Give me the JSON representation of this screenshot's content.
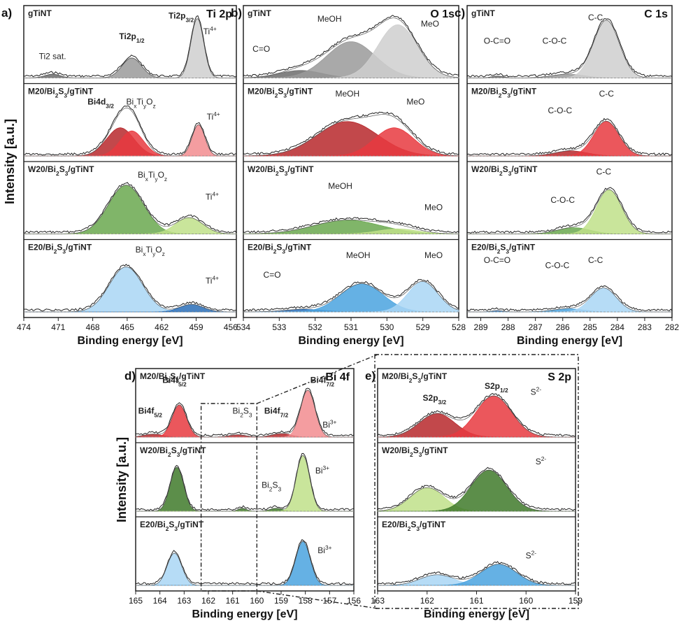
{
  "figure": {
    "panel_letters": [
      "a)",
      "b)",
      "c)",
      "d)",
      "e)"
    ],
    "ylabel": "Intensity [a.u.]",
    "xlabel": "Binding energy [eV]"
  },
  "colors": {
    "gray": "#9a9a9a",
    "gray_light": "#cfcfcf",
    "gray_dark": "#6c6c6c",
    "red": "#e8393f",
    "red_dark": "#b7282c",
    "red_light": "#f28c8f",
    "green": "#6aa84f",
    "green_dark": "#3f7a2a",
    "green_light": "#bfe08a",
    "blue": "#4aa3df",
    "blue_dark": "#2a6fb8",
    "blue_light": "#a9d6f5",
    "line": "#333333"
  },
  "chart_data": [
    {
      "id": "a",
      "type": "line",
      "title": "Ti 2p",
      "xlabel": "Binding energy [eV]",
      "ylabel": "Intensity [a.u.]",
      "xlim": [
        474,
        455.5
      ],
      "xticks": [
        474,
        471,
        468,
        465,
        462,
        459,
        456
      ],
      "samples": [
        {
          "name": "gTiNT",
          "color": "gray",
          "peaks": [
            {
              "center": 471.5,
              "fwhm": 1.6,
              "height": 0.06,
              "shade": "gray_dark"
            },
            {
              "center": 464.6,
              "fwhm": 2.0,
              "height": 0.32,
              "shade": "gray"
            },
            {
              "center": 458.9,
              "fwhm": 1.3,
              "height": 0.95,
              "shade": "gray_light"
            }
          ],
          "labels": [
            {
              "text": "Ti2 sat.",
              "x": 471.5,
              "y": 0.3
            },
            {
              "text": "Ti2p1/2",
              "x": 464.6,
              "y": 0.62,
              "bold": true
            },
            {
              "text": "Ti2p3/2",
              "x": 460.3,
              "y": 0.95,
              "bold": true
            },
            {
              "text": "Ti4+",
              "x": 457.8,
              "y": 0.7
            }
          ]
        },
        {
          "name": "M20/Bi2S3/gTiNT",
          "color": "red",
          "peaks": [
            {
              "center": 465.6,
              "fwhm": 2.8,
              "height": 0.45,
              "shade": "red_dark"
            },
            {
              "center": 464.6,
              "fwhm": 2.4,
              "height": 0.4,
              "shade": "red"
            },
            {
              "center": 458.8,
              "fwhm": 1.3,
              "height": 0.5,
              "shade": "red_light"
            }
          ],
          "labels": [
            {
              "text": "Bi4d3/2",
              "x": 467.3,
              "y": 0.82,
              "bold": true
            },
            {
              "text": "BixTiyOz",
              "x": 463.8,
              "y": 0.82
            },
            {
              "text": "Ti4+",
              "x": 457.5,
              "y": 0.58
            }
          ]
        },
        {
          "name": "W20/Bi2S3/gTiNT",
          "color": "green",
          "peaks": [
            {
              "center": 465.1,
              "fwhm": 3.6,
              "height": 0.78,
              "shade": "green"
            },
            {
              "center": 459.6,
              "fwhm": 2.8,
              "height": 0.26,
              "shade": "green_light"
            }
          ],
          "labels": [
            {
              "text": "BixTiyOz",
              "x": 462.8,
              "y": 0.9
            },
            {
              "text": "Ti4+",
              "x": 457.6,
              "y": 0.55
            }
          ]
        },
        {
          "name": "E20/Bi2S3/gTiNT",
          "color": "blue",
          "peaks": [
            {
              "center": 465.1,
              "fwhm": 3.4,
              "height": 0.72,
              "shade": "blue_light"
            },
            {
              "center": 459.4,
              "fwhm": 2.4,
              "height": 0.12,
              "shade": "blue_dark"
            }
          ],
          "labels": [
            {
              "text": "BixTiyOz",
              "x": 463.0,
              "y": 0.95
            },
            {
              "text": "Ti4+",
              "x": 457.6,
              "y": 0.45
            }
          ]
        }
      ]
    },
    {
      "id": "b",
      "type": "line",
      "title": "O 1s",
      "xlabel": "Binding energy [eV]",
      "xlim": [
        534,
        528
      ],
      "xticks": [
        534,
        533,
        532,
        531,
        530,
        529,
        528
      ],
      "samples": [
        {
          "name": "gTiNT",
          "color": "gray",
          "peaks": [
            {
              "center": 532.4,
              "fwhm": 1.4,
              "height": 0.12,
              "shade": "gray_dark"
            },
            {
              "center": 531.0,
              "fwhm": 1.6,
              "height": 0.58,
              "shade": "gray"
            },
            {
              "center": 529.7,
              "fwhm": 1.3,
              "height": 0.85,
              "shade": "gray_light"
            }
          ],
          "labels": [
            {
              "text": "C=O",
              "x": 533.5,
              "y": 0.42
            },
            {
              "text": "MeOH",
              "x": 531.6,
              "y": 0.9
            },
            {
              "text": "MeO",
              "x": 528.8,
              "y": 0.82
            }
          ]
        },
        {
          "name": "M20/Bi2S3/gTiNT",
          "color": "red",
          "peaks": [
            {
              "center": 531.1,
              "fwhm": 2.0,
              "height": 0.55,
              "shade": "red_dark"
            },
            {
              "center": 529.8,
              "fwhm": 1.3,
              "height": 0.45,
              "shade": "red"
            }
          ],
          "labels": [
            {
              "text": "MeOH",
              "x": 531.1,
              "y": 0.95
            },
            {
              "text": "MeO",
              "x": 529.2,
              "y": 0.82
            }
          ]
        },
        {
          "name": "W20/Bi2S3/gTiNT",
          "color": "green",
          "peaks": [
            {
              "center": 531.1,
              "fwhm": 2.2,
              "height": 0.22,
              "shade": "green"
            },
            {
              "center": 529.7,
              "fwhm": 1.3,
              "height": 0.08,
              "shade": "green_light"
            }
          ],
          "labels": [
            {
              "text": "MeOH",
              "x": 531.3,
              "y": 0.72
            },
            {
              "text": "MeO",
              "x": 528.7,
              "y": 0.38
            }
          ]
        },
        {
          "name": "E20/Bi2S3/gTiNT",
          "color": "blue",
          "peaks": [
            {
              "center": 532.3,
              "fwhm": 1.3,
              "height": 0.04,
              "shade": "blue_dark"
            },
            {
              "center": 530.7,
              "fwhm": 1.4,
              "height": 0.45,
              "shade": "blue"
            },
            {
              "center": 529.0,
              "fwhm": 1.0,
              "height": 0.48,
              "shade": "blue_light"
            }
          ],
          "labels": [
            {
              "text": "C=O",
              "x": 533.2,
              "y": 0.55
            },
            {
              "text": "MeOH",
              "x": 530.8,
              "y": 0.86
            },
            {
              "text": "MeO",
              "x": 528.7,
              "y": 0.86
            }
          ]
        }
      ]
    },
    {
      "id": "c",
      "type": "line",
      "title": "C 1s",
      "xlabel": "Binding energy [eV]",
      "xlim": [
        289.5,
        282
      ],
      "xticks": [
        289,
        288,
        287,
        286,
        285,
        284,
        283,
        282
      ],
      "samples": [
        {
          "name": "gTiNT",
          "color": "gray",
          "peaks": [
            {
              "center": 288.4,
              "fwhm": 0.5,
              "height": 0.03,
              "shade": "gray_dark"
            },
            {
              "center": 285.8,
              "fwhm": 1.4,
              "height": 0.06,
              "shade": "gray"
            },
            {
              "center": 284.4,
              "fwhm": 1.1,
              "height": 0.92,
              "shade": "gray_light"
            }
          ],
          "labels": [
            {
              "text": "O-C=O",
              "x": 288.4,
              "y": 0.55
            },
            {
              "text": "C-O-C",
              "x": 286.3,
              "y": 0.55
            },
            {
              "text": "C-C",
              "x": 284.8,
              "y": 0.92
            }
          ]
        },
        {
          "name": "M20/Bi2S3/gTiNT",
          "color": "red",
          "peaks": [
            {
              "center": 285.7,
              "fwhm": 1.4,
              "height": 0.08,
              "shade": "red_dark"
            },
            {
              "center": 284.4,
              "fwhm": 1.1,
              "height": 0.55,
              "shade": "red"
            }
          ],
          "labels": [
            {
              "text": "C-O-C",
              "x": 286.1,
              "y": 0.68
            },
            {
              "text": "C-C",
              "x": 284.4,
              "y": 0.95
            }
          ]
        },
        {
          "name": "W20/Bi2S3/gTiNT",
          "color": "green",
          "peaks": [
            {
              "center": 285.6,
              "fwhm": 1.4,
              "height": 0.1,
              "shade": "green"
            },
            {
              "center": 284.3,
              "fwhm": 1.1,
              "height": 0.7,
              "shade": "green_light"
            }
          ],
          "labels": [
            {
              "text": "C-O-C",
              "x": 286.0,
              "y": 0.5
            },
            {
              "text": "C-C",
              "x": 284.5,
              "y": 0.95
            }
          ]
        },
        {
          "name": "E20/Bi2S3/gTiNT",
          "color": "blue",
          "peaks": [
            {
              "center": 288.4,
              "fwhm": 0.5,
              "height": 0.02,
              "shade": "blue_dark"
            },
            {
              "center": 285.8,
              "fwhm": 1.3,
              "height": 0.05,
              "shade": "blue"
            },
            {
              "center": 284.5,
              "fwhm": 1.1,
              "height": 0.38,
              "shade": "blue_light"
            }
          ],
          "labels": [
            {
              "text": "O-C=O",
              "x": 288.4,
              "y": 0.78
            },
            {
              "text": "C-O-C",
              "x": 286.2,
              "y": 0.7
            },
            {
              "text": "C-C",
              "x": 284.8,
              "y": 0.78
            }
          ]
        }
      ]
    },
    {
      "id": "d",
      "type": "line",
      "title": "Bi 4f",
      "xlabel": "Binding energy [eV]",
      "ylabel": "Intensity [a.u.]",
      "xlim": [
        165,
        156
      ],
      "xticks": [
        165,
        164,
        163,
        162,
        161,
        160,
        159,
        158,
        157,
        156
      ],
      "samples": [
        {
          "name": "M20/Bi2S3/gTiNT",
          "color": "red",
          "peaks": [
            {
              "center": 164.3,
              "fwhm": 0.9,
              "height": 0.05,
              "shade": "red_dark"
            },
            {
              "center": 163.2,
              "fwhm": 0.7,
              "height": 0.55,
              "shade": "red"
            },
            {
              "center": 160.8,
              "fwhm": 0.8,
              "height": 0.04,
              "shade": "red_dark"
            },
            {
              "center": 159.0,
              "fwhm": 0.9,
              "height": 0.06,
              "shade": "red_dark"
            },
            {
              "center": 157.9,
              "fwhm": 0.7,
              "height": 0.8,
              "shade": "red_light"
            }
          ],
          "labels": [
            {
              "text": "Bi4f5/2",
              "x": 163.4,
              "y": 0.92,
              "bold": true
            },
            {
              "text": "Bi4f5/2",
              "x": 164.4,
              "y": 0.4,
              "bold": true
            },
            {
              "text": "Bi2S3",
              "x": 160.6,
              "y": 0.4
            },
            {
              "text": "Bi4f7/2",
              "x": 159.2,
              "y": 0.4,
              "bold": true
            },
            {
              "text": "Bi4f7/2",
              "x": 157.3,
              "y": 0.92,
              "bold": true
            },
            {
              "text": "Bi3+",
              "x": 157.0,
              "y": 0.16
            }
          ]
        },
        {
          "name": "W20/Bi2S3/gTiNT",
          "color": "green",
          "peaks": [
            {
              "center": 163.3,
              "fwhm": 0.65,
              "height": 0.75,
              "shade": "green_dark"
            },
            {
              "center": 160.6,
              "fwhm": 0.4,
              "height": 0.05,
              "shade": "green_dark"
            },
            {
              "center": 159.2,
              "fwhm": 0.6,
              "height": 0.05,
              "shade": "green_dark"
            },
            {
              "center": 158.1,
              "fwhm": 0.65,
              "height": 0.95,
              "shade": "green_light"
            }
          ],
          "labels": [
            {
              "text": "Bi2S3",
              "x": 159.4,
              "y": 0.4
            },
            {
              "text": "Bi3+",
              "x": 157.3,
              "y": 0.64
            }
          ]
        },
        {
          "name": "E20/Bi2S3/gTiNT",
          "color": "blue",
          "peaks": [
            {
              "center": 163.4,
              "fwhm": 0.7,
              "height": 0.55,
              "shade": "blue_light"
            },
            {
              "center": 158.1,
              "fwhm": 0.7,
              "height": 0.75,
              "shade": "blue"
            }
          ],
          "labels": [
            {
              "text": "Bi3+",
              "x": 157.2,
              "y": 0.55
            }
          ]
        }
      ]
    },
    {
      "id": "e",
      "type": "line",
      "title": "S 2p",
      "xlabel": "Binding energy [eV]",
      "xlim": [
        163,
        159
      ],
      "xticks": [
        163,
        162,
        161,
        160,
        159
      ],
      "samples": [
        {
          "name": "M20/Bi2S3/gTiNT",
          "color": "red",
          "peaks": [
            {
              "center": 161.8,
              "fwhm": 0.85,
              "height": 0.4,
              "shade": "red_dark"
            },
            {
              "center": 160.65,
              "fwhm": 0.85,
              "height": 0.7,
              "shade": "red"
            }
          ],
          "labels": [
            {
              "text": "S2p3/2",
              "x": 161.85,
              "y": 0.62,
              "bold": true
            },
            {
              "text": "S2p1/2",
              "x": 160.6,
              "y": 0.82,
              "bold": true
            },
            {
              "text": "S2-",
              "x": 159.8,
              "y": 0.72
            }
          ]
        },
        {
          "name": "W20/Bi2S3/gTiNT",
          "color": "green",
          "peaks": [
            {
              "center": 162.0,
              "fwhm": 0.8,
              "height": 0.4,
              "shade": "green_light"
            },
            {
              "center": 160.75,
              "fwhm": 0.85,
              "height": 0.7,
              "shade": "green_dark"
            }
          ],
          "labels": [
            {
              "text": "S2-",
              "x": 159.7,
              "y": 0.8
            }
          ]
        },
        {
          "name": "E20/Bi2S3/gTiNT",
          "color": "blue",
          "peaks": [
            {
              "center": 161.8,
              "fwhm": 0.8,
              "height": 0.18,
              "shade": "blue_light"
            },
            {
              "center": 160.55,
              "fwhm": 0.85,
              "height": 0.36,
              "shade": "blue"
            }
          ],
          "labels": [
            {
              "text": "S2-",
              "x": 159.9,
              "y": 0.46
            }
          ]
        }
      ]
    }
  ]
}
